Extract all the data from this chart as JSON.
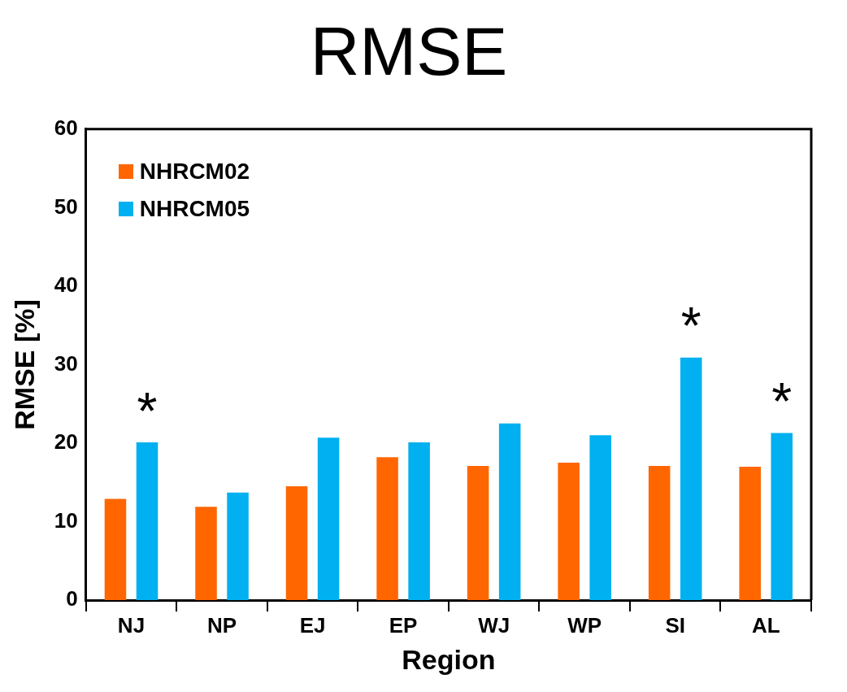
{
  "chart_data": {
    "type": "bar",
    "title": "RMSE",
    "xlabel": "Region",
    "ylabel": "RMSE [%]",
    "categories": [
      "NJ",
      "NP",
      "EJ",
      "EP",
      "WJ",
      "WP",
      "SI",
      "AL"
    ],
    "series": [
      {
        "name": "NHRCM02",
        "color": "#ff6600",
        "values": [
          12.9,
          11.9,
          14.5,
          18.2,
          17.1,
          17.5,
          17.1,
          17.0
        ]
      },
      {
        "name": "NHRCM05",
        "color": "#00b0f0",
        "values": [
          20.1,
          13.7,
          20.7,
          20.1,
          22.5,
          21.0,
          30.9,
          21.3
        ]
      }
    ],
    "ylim": [
      0,
      60
    ],
    "yticks": [
      0,
      10,
      20,
      30,
      40,
      50,
      60
    ],
    "grid": false,
    "legend": "top left",
    "annotations": [
      "*",
      "*",
      "*"
    ]
  }
}
